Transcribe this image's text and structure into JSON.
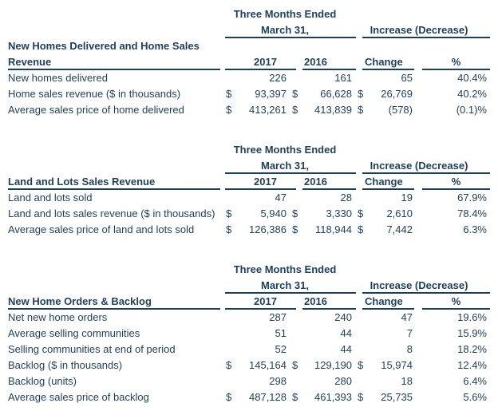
{
  "colors": {
    "text": "#1d3f5a",
    "rule": "#1d3f5a",
    "background": "#ffffff"
  },
  "tables": [
    {
      "id": "new-homes-delivered-and-home-sales-revenue",
      "period_line1": "Three Months Ended",
      "period_line2": "March 31,",
      "increase_label": "Increase (Decrease)",
      "title_pre": "New Homes Delivered and Home Sales",
      "title": "Revenue",
      "col_2017": "2017",
      "col_2016": "2016",
      "col_change": "Change",
      "col_pct": "%",
      "rows": [
        {
          "label": "New homes delivered",
          "d17": "",
          "v17": "226",
          "d16": "",
          "v16": "161",
          "dch": "",
          "vch": "65",
          "pct": "40.4%"
        },
        {
          "label": "Home sales revenue ($ in thousands)",
          "d17": "$",
          "v17": "93,397",
          "d16": "$",
          "v16": "66,628",
          "dch": "$",
          "vch": "26,769",
          "pct": "40.2%"
        },
        {
          "label": "Average sales price of home delivered",
          "d17": "$",
          "v17": "413,261",
          "d16": "$",
          "v16": "413,839",
          "dch": "$",
          "vch": "(578)",
          "pct": "(0.1)%"
        }
      ]
    },
    {
      "id": "land-and-lots-sales-revenue",
      "period_line1": "Three Months Ended",
      "period_line2": "March 31,",
      "increase_label": "Increase (Decrease)",
      "title": "Land and Lots Sales Revenue",
      "col_2017": "2017",
      "col_2016": "2016",
      "col_change": "Change",
      "col_pct": "%",
      "rows": [
        {
          "label": "Land and lots sold",
          "d17": "",
          "v17": "47",
          "d16": "",
          "v16": "28",
          "dch": "",
          "vch": "19",
          "pct": "67.9%"
        },
        {
          "label": "Land and lots sales revenue ($ in thousands)",
          "d17": "$",
          "v17": "5,940",
          "d16": "$",
          "v16": "3,330",
          "dch": "$",
          "vch": "2,610",
          "pct": "78.4%"
        },
        {
          "label": "Average sales price of land and lots sold",
          "d17": "$",
          "v17": "126,386",
          "d16": "$",
          "v16": "118,944",
          "dch": "$",
          "vch": "7,442",
          "pct": "6.3%"
        }
      ]
    },
    {
      "id": "new-home-orders-and-backlog",
      "period_line1": "Three Months Ended",
      "period_line2": "March 31,",
      "increase_label": "Increase (Decrease)",
      "title": "New Home Orders & Backlog",
      "col_2017": "2017",
      "col_2016": "2016",
      "col_change": "Change",
      "col_pct": "%",
      "rows": [
        {
          "label": "Net new home orders",
          "d17": "",
          "v17": "287",
          "d16": "",
          "v16": "240",
          "dch": "",
          "vch": "47",
          "pct": "19.6%"
        },
        {
          "label": "Average selling communities",
          "d17": "",
          "v17": "51",
          "d16": "",
          "v16": "44",
          "dch": "",
          "vch": "7",
          "pct": "15.9%"
        },
        {
          "label": "Selling communities at end of period",
          "d17": "",
          "v17": "52",
          "d16": "",
          "v16": "44",
          "dch": "",
          "vch": "8",
          "pct": "18.2%"
        },
        {
          "label": "Backlog ($ in thousands)",
          "d17": "$",
          "v17": "145,164",
          "d16": "$",
          "v16": "129,190",
          "dch": "$",
          "vch": "15,974",
          "pct": "12.4%"
        },
        {
          "label": "Backlog (units)",
          "d17": "",
          "v17": "298",
          "d16": "",
          "v16": "280",
          "dch": "",
          "vch": "18",
          "pct": "6.4%"
        },
        {
          "label": "Average sales price of backlog",
          "d17": "$",
          "v17": "487,128",
          "d16": "$",
          "v16": "461,393",
          "dch": "$",
          "vch": "25,735",
          "pct": "5.6%"
        }
      ]
    }
  ]
}
